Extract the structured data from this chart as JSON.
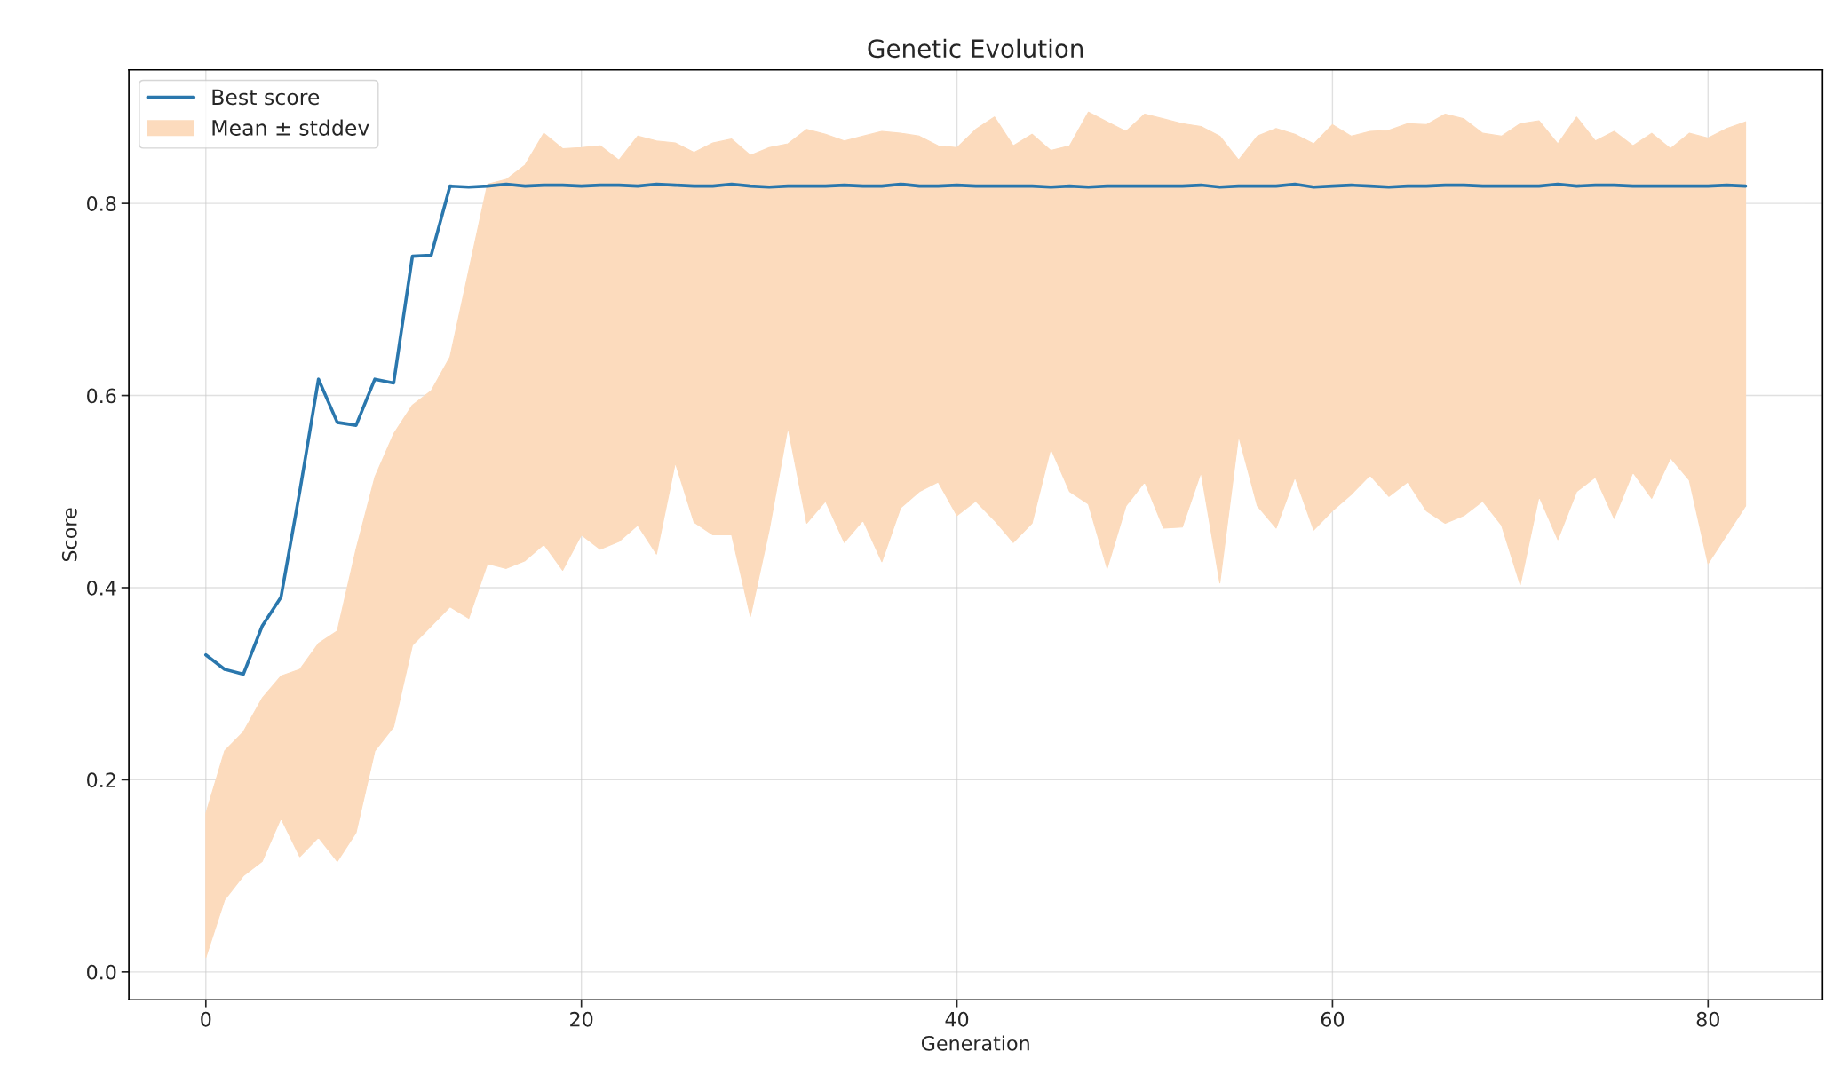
{
  "chart_data": {
    "type": "line",
    "title": "Genetic Evolution",
    "xlabel": "Generation",
    "ylabel": "Score",
    "x": [
      0,
      1,
      2,
      3,
      4,
      5,
      6,
      7,
      8,
      9,
      10,
      11,
      12,
      13,
      14,
      15,
      16,
      17,
      18,
      19,
      20,
      21,
      22,
      23,
      24,
      25,
      26,
      27,
      28,
      29,
      30,
      31,
      32,
      33,
      34,
      35,
      36,
      37,
      38,
      39,
      40,
      41,
      42,
      43,
      44,
      45,
      46,
      47,
      48,
      49,
      50,
      51,
      52,
      53,
      54,
      55,
      56,
      57,
      58,
      59,
      60,
      61,
      62,
      63,
      64,
      65,
      66,
      67,
      68,
      69,
      70,
      71,
      72,
      73,
      74,
      75,
      76,
      77,
      78,
      79,
      80,
      81,
      82
    ],
    "series": [
      {
        "name": "Best score",
        "color": "#2a77ad",
        "values": [
          0.33,
          0.315,
          0.31,
          0.36,
          0.39,
          0.5,
          0.617,
          0.572,
          0.569,
          0.617,
          0.613,
          0.745,
          0.746,
          0.818,
          0.817,
          0.818,
          0.82,
          0.818,
          0.819,
          0.819,
          0.818,
          0.819,
          0.819,
          0.818,
          0.82,
          0.819,
          0.818,
          0.818,
          0.82,
          0.818,
          0.817,
          0.818,
          0.818,
          0.818,
          0.819,
          0.818,
          0.818,
          0.82,
          0.818,
          0.818,
          0.819,
          0.818,
          0.818,
          0.818,
          0.818,
          0.817,
          0.818,
          0.817,
          0.818,
          0.818,
          0.818,
          0.818,
          0.818,
          0.819,
          0.817,
          0.818,
          0.818,
          0.818,
          0.82,
          0.817,
          0.818,
          0.819,
          0.818,
          0.817,
          0.818,
          0.818,
          0.819,
          0.819,
          0.818,
          0.818,
          0.818,
          0.818,
          0.82,
          0.818,
          0.819,
          0.819,
          0.818,
          0.818,
          0.818,
          0.818,
          0.818,
          0.819,
          0.818
        ]
      },
      {
        "name": "Mean ± stddev",
        "type": "area",
        "color": "#fcdbbd",
        "values": [
          null,
          null,
          null,
          null,
          null,
          null,
          null,
          null,
          null,
          null,
          null,
          null,
          null,
          null,
          null,
          null,
          null,
          null,
          null,
          null,
          null,
          null,
          null,
          null,
          null,
          null,
          null,
          null,
          null,
          null,
          null,
          null,
          null,
          null,
          null,
          null,
          null,
          null,
          null,
          null,
          null,
          null,
          null,
          null,
          null,
          null,
          null,
          null,
          null,
          null,
          null,
          null,
          null,
          null,
          null,
          null,
          null,
          null,
          null,
          null,
          null,
          null,
          null,
          null,
          null,
          null,
          null,
          null,
          null,
          null,
          null,
          null,
          null,
          null,
          null,
          null,
          null,
          null,
          null,
          null,
          null,
          null,
          null
        ],
        "lower": [
          0.015,
          0.075,
          0.1,
          0.115,
          0.16,
          0.12,
          0.14,
          0.115,
          0.145,
          0.23,
          0.255,
          0.34,
          0.36,
          0.38,
          0.368,
          0.425,
          0.42,
          0.428,
          0.445,
          0.418,
          0.455,
          0.44,
          0.448,
          0.465,
          0.435,
          0.53,
          0.468,
          0.455,
          0.455,
          0.37,
          0.46,
          0.567,
          0.467,
          0.49,
          0.447,
          0.47,
          0.427,
          0.483,
          0.5,
          0.51,
          0.475,
          0.49,
          0.47,
          0.447,
          0.467,
          0.545,
          0.5,
          0.487,
          0.42,
          0.485,
          0.51,
          0.462,
          0.463,
          0.52,
          0.405,
          0.558,
          0.485,
          0.462,
          0.515,
          0.46,
          0.48,
          0.497,
          0.517,
          0.495,
          0.51,
          0.48,
          0.467,
          0.475,
          0.49,
          0.465,
          0.403,
          0.495,
          0.45,
          0.5,
          0.515,
          0.472,
          0.52,
          0.493,
          0.535,
          0.512,
          0.425,
          0.455,
          0.485
        ],
        "upper": [
          0.165,
          0.23,
          0.25,
          0.285,
          0.308,
          0.315,
          0.342,
          0.355,
          0.44,
          0.515,
          0.56,
          0.59,
          0.605,
          0.64,
          0.73,
          0.82,
          0.825,
          0.84,
          0.873,
          0.857,
          0.858,
          0.86,
          0.845,
          0.87,
          0.865,
          0.863,
          0.853,
          0.863,
          0.867,
          0.85,
          0.858,
          0.862,
          0.877,
          0.872,
          0.865,
          0.87,
          0.875,
          0.873,
          0.87,
          0.86,
          0.858,
          0.877,
          0.89,
          0.86,
          0.872,
          0.855,
          0.86,
          0.895,
          0.885,
          0.875,
          0.893,
          0.888,
          0.883,
          0.88,
          0.87,
          0.845,
          0.87,
          0.878,
          0.872,
          0.862,
          0.882,
          0.87,
          0.875,
          0.876,
          0.883,
          0.882,
          0.893,
          0.888,
          0.873,
          0.87,
          0.883,
          0.886,
          0.862,
          0.89,
          0.865,
          0.875,
          0.86,
          0.873,
          0.857,
          0.873,
          0.868,
          0.878,
          0.885
        ]
      }
    ],
    "xlim": [
      -4.1,
      86.1
    ],
    "ylim": [
      -0.029,
      0.939
    ],
    "xticks": [
      0,
      20,
      40,
      60,
      80
    ],
    "yticks": [
      {
        "value": 0,
        "label": "0.0"
      },
      {
        "value": 0.2,
        "label": "0.2"
      },
      {
        "value": 0.4,
        "label": "0.4"
      },
      {
        "value": 0.6,
        "label": "0.6"
      },
      {
        "value": 0.8,
        "label": "0.8"
      }
    ],
    "grid": true,
    "legend": "top left",
    "line_style": "solid",
    "marker": "none"
  }
}
